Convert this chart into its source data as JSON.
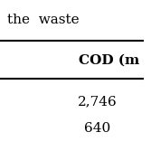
{
  "header_text": "the  waste",
  "col_header": "COD (m",
  "row_values": [
    "2,746",
    "640"
  ],
  "bg_color": "#ffffff",
  "text_color": "#000000",
  "font_size": 11,
  "header_font_size": 11,
  "line_color": "#000000"
}
